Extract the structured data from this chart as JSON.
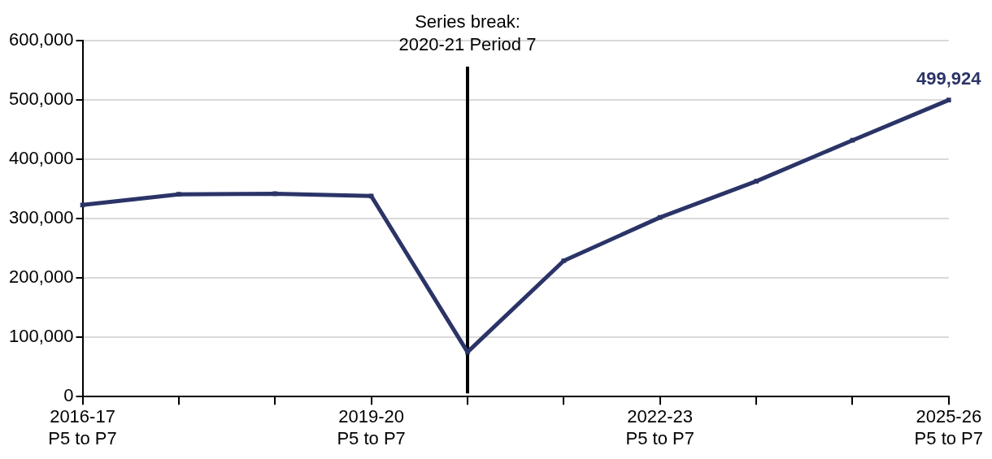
{
  "chart_data": {
    "type": "line",
    "categories": [
      "2016-17\nP5 to P7",
      null,
      null,
      "2019-20\nP5 to P7",
      null,
      null,
      "2022-23\nP5 to P7",
      null,
      null,
      "2025-26\nP5 to P7"
    ],
    "series": [
      {
        "color": "#2b3467",
        "values": [
          323000,
          341000,
          342000,
          338000,
          75000,
          229000,
          302000,
          363000,
          432000,
          499924
        ],
        "value_labels": [
          null,
          null,
          null,
          null,
          null,
          null,
          null,
          null,
          null,
          "499,924"
        ]
      }
    ],
    "ylim": [
      0,
      600000
    ],
    "yticks": [
      0,
      {
        "value": 100000,
        "label": "100,000"
      },
      {
        "value": 200000,
        "label": "200,000"
      },
      {
        "value": 300000,
        "label": "300,000"
      },
      {
        "value": 400000,
        "label": "400,000"
      },
      {
        "value": 500000,
        "label": "500,000"
      },
      {
        "value": 600000,
        "label": "600,000"
      }
    ],
    "grid": "y",
    "legend": false,
    "marker": "square",
    "line_style": "solid",
    "annotations": [
      "Series break:\n2020-21 Period 7"
    ]
  }
}
